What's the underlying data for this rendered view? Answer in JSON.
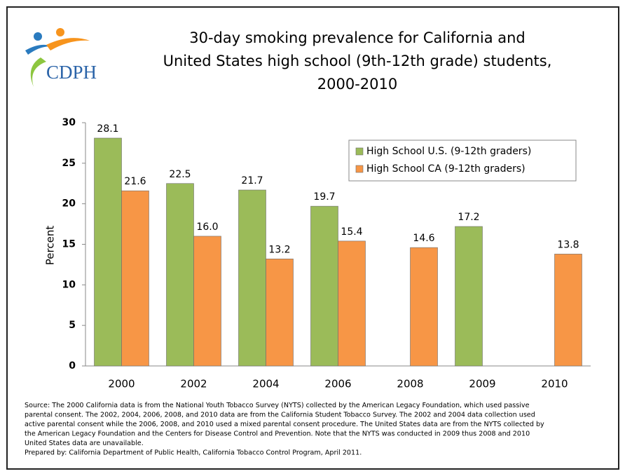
{
  "logo_text": "CDPH",
  "chart_data": {
    "type": "bar",
    "title": [
      "30-day smoking prevalence for California and",
      "United States high school (9th-12th grade) students,",
      "2000-2010"
    ],
    "ylabel": "Percent",
    "categories": [
      "2000",
      "2002",
      "2004",
      "2006",
      "2008",
      "2009",
      "2010"
    ],
    "series": [
      {
        "name": "High School U.S. (9-12th graders)",
        "color": "#9bbb59",
        "values": [
          28.1,
          22.5,
          21.7,
          19.7,
          null,
          17.2,
          null
        ],
        "value_labels": [
          "28.1",
          "22.5",
          "21.7",
          "19.7",
          null,
          "17.2",
          null
        ]
      },
      {
        "name": "High School CA (9-12th graders)",
        "color": "#f79646",
        "values": [
          21.6,
          16.0,
          13.2,
          15.4,
          14.6,
          null,
          13.8
        ],
        "value_labels": [
          "21.6",
          "16.0",
          "13.2",
          "15.4",
          "14.6",
          null,
          "13.8"
        ]
      }
    ],
    "ylim": [
      0,
      30
    ],
    "yticks": [
      0,
      5,
      10,
      15,
      20,
      25,
      30
    ],
    "legend": "upper right",
    "source": [
      "Source:  The 2000 California data is from the National Youth Tobacco Survey (NYTS) collected by the American Legacy Foundation, which used passive",
      "parental consent.  The 2002, 2004, 2006, 2008, and 2010 data are from the California Student Tobacco Survey.  The 2002 and 2004 data collection used",
      "active parental consent while the 2006, 2008, and 2010 used a mixed parental consent procedure.  The United States data are from the NYTS collected by",
      "the American Legacy Foundation and the Centers for Disease Control and Prevention.  Note that the NYTS was conducted in 2009 thus 2008 and 2010",
      "United States data are unavailable.",
      "Prepared by:  California Department of Public Health, California Tobacco Control Program, April 2011."
    ]
  }
}
